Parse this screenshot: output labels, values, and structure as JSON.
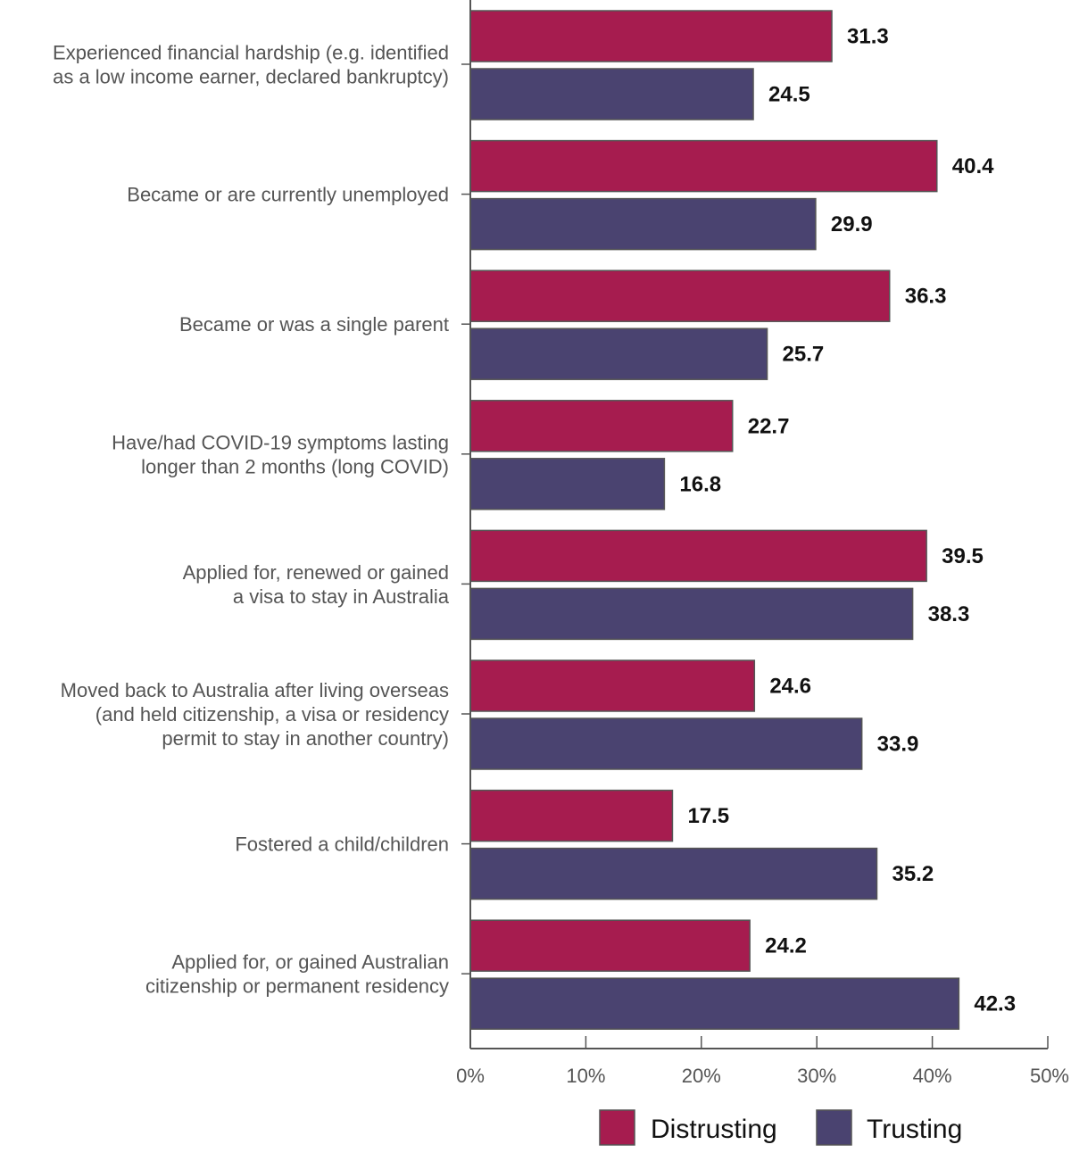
{
  "chart_data": {
    "type": "bar",
    "orientation": "horizontal",
    "categories": [
      [
        "Experienced financial hardship (e.g. identified",
        "as a low income earner, declared bankruptcy)"
      ],
      [
        "Became or are currently unemployed"
      ],
      [
        "Became or was a single parent"
      ],
      [
        "Have/had COVID-19 symptoms lasting",
        "longer than 2 months (long COVID)"
      ],
      [
        "Applied for, renewed or gained",
        "a visa to stay in Australia"
      ],
      [
        "Moved back to Australia after living overseas",
        "(and held citizenship, a visa or residency",
        "permit to stay in another country)"
      ],
      [
        "Fostered a child/children"
      ],
      [
        "Applied for, or gained Australian",
        "citizenship or permanent residency"
      ]
    ],
    "series": [
      {
        "name": "Distrusting",
        "color": "#a61c4f",
        "values": [
          31.3,
          40.4,
          36.3,
          22.7,
          39.5,
          24.6,
          17.5,
          24.2
        ]
      },
      {
        "name": "Trusting",
        "color": "#4a4370",
        "values": [
          24.5,
          29.9,
          25.7,
          16.8,
          38.3,
          33.9,
          35.2,
          42.3
        ]
      }
    ],
    "value_labels": {
      "Distrusting": [
        "31.3",
        "40.4",
        "36.3",
        "22.7",
        "39.5",
        "24.6",
        "17.5",
        "24.2"
      ],
      "Trusting": [
        "24.5",
        "29.9",
        "25.7",
        "16.8",
        "38.3",
        "33.9",
        "35.2",
        "42.3"
      ]
    },
    "xlim": [
      0,
      50
    ],
    "xticks": [
      0,
      10,
      20,
      30,
      40,
      50
    ],
    "xtick_labels": [
      "0%",
      "10%",
      "20%",
      "30%",
      "40%",
      "50%"
    ],
    "title": "",
    "xlabel": "",
    "ylabel": "",
    "grid": false,
    "legend_position": "bottom-right"
  }
}
